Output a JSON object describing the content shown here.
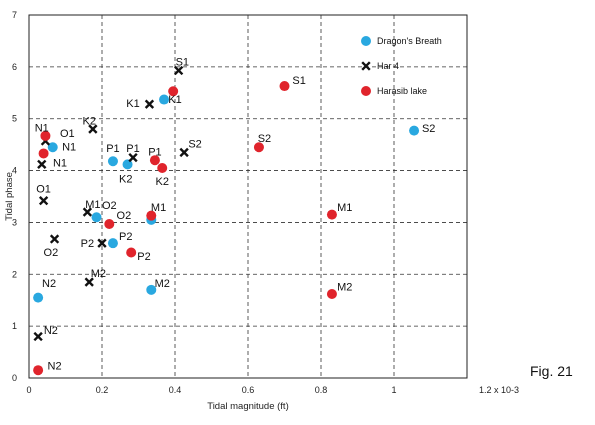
{
  "figure_label": "Fig. 21",
  "chart_data": {
    "type": "scatter",
    "xlabel": "Tidal magnitude (ft)",
    "ylabel": "Tidal phase",
    "xlim": [
      0,
      1.2
    ],
    "ylim": [
      0,
      7
    ],
    "x_ticks": [
      "0",
      "0.2",
      "0.4",
      "0.6",
      "0.8",
      "1",
      "1.2 x 10-3"
    ],
    "y_ticks": [
      "0",
      "1",
      "2",
      "3",
      "4",
      "5",
      "6",
      "7"
    ],
    "grid": true,
    "legend_position": "top-right",
    "series": [
      {
        "name": "Dragon's Breath",
        "marker": "circle",
        "color": "#29a8e0",
        "points": [
          {
            "label": "S2",
            "x": 1.055,
            "y": 4.77
          },
          {
            "label": "K1",
            "x": 0.37,
            "y": 5.37
          },
          {
            "label": "N1",
            "x": 0.065,
            "y": 4.45
          },
          {
            "label": "P1",
            "x": 0.23,
            "y": 4.18
          },
          {
            "label": "K2",
            "x": 0.27,
            "y": 4.12
          },
          {
            "label": "M1",
            "x": 0.335,
            "y": 3.05
          },
          {
            "label": "O2",
            "x": 0.185,
            "y": 3.1
          },
          {
            "label": "P2",
            "x": 0.23,
            "y": 2.6
          },
          {
            "label": "M2",
            "x": 0.335,
            "y": 1.7
          },
          {
            "label": "N2",
            "x": 0.025,
            "y": 1.55
          }
        ]
      },
      {
        "name": "Har 4",
        "marker": "x",
        "color": "#111111",
        "points": [
          {
            "label": "S1",
            "x": 0.41,
            "y": 5.93
          },
          {
            "label": "K1",
            "x": 0.33,
            "y": 5.28
          },
          {
            "label": "K2",
            "x": 0.175,
            "y": 4.8
          },
          {
            "label": "N1",
            "x": 0.045,
            "y": 4.57
          },
          {
            "label": "S2",
            "x": 0.425,
            "y": 4.35
          },
          {
            "label": "P1",
            "x": 0.285,
            "y": 4.25
          },
          {
            "label": "N1",
            "x": 0.035,
            "y": 4.12
          },
          {
            "label": "O1",
            "x": 0.04,
            "y": 3.42
          },
          {
            "label": "M1",
            "x": 0.16,
            "y": 3.2
          },
          {
            "label": "O2",
            "x": 0.07,
            "y": 2.68
          },
          {
            "label": "P2",
            "x": 0.2,
            "y": 2.6
          },
          {
            "label": "M2",
            "x": 0.165,
            "y": 1.85
          },
          {
            "label": "N2",
            "x": 0.025,
            "y": 0.8
          }
        ]
      },
      {
        "name": "Harasib lake",
        "marker": "circle",
        "color": "#e0242c",
        "points": [
          {
            "label": "S1",
            "x": 0.7,
            "y": 5.63
          },
          {
            "label": "K1",
            "x": 0.395,
            "y": 5.53
          },
          {
            "label": "N1",
            "x": 0.045,
            "y": 4.67
          },
          {
            "label": "S2",
            "x": 0.63,
            "y": 4.45
          },
          {
            "label": "N1",
            "x": 0.04,
            "y": 4.33
          },
          {
            "label": "P1",
            "x": 0.345,
            "y": 4.2
          },
          {
            "label": "K2",
            "x": 0.365,
            "y": 4.05
          },
          {
            "label": "M1",
            "x": 0.83,
            "y": 3.15
          },
          {
            "label": "M1",
            "x": 0.335,
            "y": 3.13
          },
          {
            "label": "O2",
            "x": 0.22,
            "y": 2.97
          },
          {
            "label": "P2",
            "x": 0.28,
            "y": 2.42
          },
          {
            "label": "M2",
            "x": 0.83,
            "y": 1.62
          },
          {
            "label": "N2",
            "x": 0.025,
            "y": 0.15
          }
        ]
      }
    ],
    "annotations": [
      {
        "text": "S1",
        "x": 0.42,
        "y": 6.1
      },
      {
        "text": "K1",
        "x": 0.285,
        "y": 5.3
      },
      {
        "text": "K1",
        "x": 0.4,
        "y": 5.38
      },
      {
        "text": "S1",
        "x": 0.74,
        "y": 5.75
      },
      {
        "text": "K2",
        "x": 0.165,
        "y": 4.97
      },
      {
        "text": "N1",
        "x": 0.035,
        "y": 4.83
      },
      {
        "text": "O1",
        "x": 0.105,
        "y": 4.72
      },
      {
        "text": "N1",
        "x": 0.11,
        "y": 4.46
      },
      {
        "text": "S2",
        "x": 0.455,
        "y": 4.52
      },
      {
        "text": "S2",
        "x": 0.645,
        "y": 4.63
      },
      {
        "text": "S2",
        "x": 1.095,
        "y": 4.82
      },
      {
        "text": "P1",
        "x": 0.23,
        "y": 4.44
      },
      {
        "text": "P1",
        "x": 0.285,
        "y": 4.44
      },
      {
        "text": "P1",
        "x": 0.345,
        "y": 4.37
      },
      {
        "text": "N1",
        "x": 0.085,
        "y": 4.16
      },
      {
        "text": "K2",
        "x": 0.265,
        "y": 3.85
      },
      {
        "text": "K2",
        "x": 0.365,
        "y": 3.8
      },
      {
        "text": "O1",
        "x": 0.04,
        "y": 3.65
      },
      {
        "text": "M1",
        "x": 0.175,
        "y": 3.36
      },
      {
        "text": "O2",
        "x": 0.22,
        "y": 3.34
      },
      {
        "text": "O2",
        "x": 0.26,
        "y": 3.14
      },
      {
        "text": "M1",
        "x": 0.355,
        "y": 3.3
      },
      {
        "text": "M1",
        "x": 0.865,
        "y": 3.3
      },
      {
        "text": "P2",
        "x": 0.265,
        "y": 2.74
      },
      {
        "text": "P2",
        "x": 0.16,
        "y": 2.6
      },
      {
        "text": "O2",
        "x": 0.06,
        "y": 2.43
      },
      {
        "text": "P2",
        "x": 0.315,
        "y": 2.35
      },
      {
        "text": "M2",
        "x": 0.19,
        "y": 2.02
      },
      {
        "text": "N2",
        "x": 0.055,
        "y": 1.83
      },
      {
        "text": "M2",
        "x": 0.365,
        "y": 1.83
      },
      {
        "text": "M2",
        "x": 0.865,
        "y": 1.76
      },
      {
        "text": "N2",
        "x": 0.06,
        "y": 0.93
      },
      {
        "text": "N2",
        "x": 0.07,
        "y": 0.24
      }
    ]
  }
}
